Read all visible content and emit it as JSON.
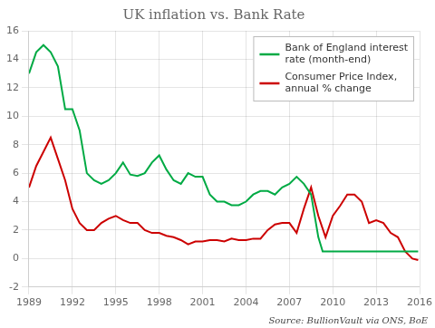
{
  "chart_data": {
    "type": "line",
    "title": "UK inflation vs. Bank Rate",
    "annotations": [
      "Source: BullionVault via ONS, BoE"
    ],
    "xlim": [
      1989,
      2016
    ],
    "xticks": [
      1989,
      1992,
      1995,
      1998,
      2001,
      2004,
      2007,
      2010,
      2013,
      2016
    ],
    "ylim": [
      -2,
      16
    ],
    "yticks": [
      -2,
      0,
      2,
      4,
      6,
      8,
      10,
      12,
      14,
      16
    ],
    "grid": true,
    "legend": "upper right",
    "series": [
      {
        "name": "Bank of England interest\nrate (month-end)",
        "color": "#00AA44",
        "x": [
          1989.0,
          1989.5,
          1990.0,
          1990.5,
          1991.0,
          1991.5,
          1992.0,
          1992.5,
          1993.0,
          1993.5,
          1994.0,
          1994.5,
          1995.0,
          1995.5,
          1996.0,
          1996.5,
          1997.0,
          1997.5,
          1998.0,
          1998.5,
          1999.0,
          1999.5,
          2000.0,
          2000.5,
          2001.0,
          2001.5,
          2002.0,
          2002.5,
          2003.0,
          2003.5,
          2004.0,
          2004.5,
          2005.0,
          2005.5,
          2006.0,
          2006.5,
          2007.0,
          2007.5,
          2008.0,
          2008.5,
          2009.0,
          2009.3,
          2009.5,
          2010.0,
          2010.5,
          2011.0,
          2011.5,
          2012.0,
          2012.5,
          2013.0,
          2013.5,
          2014.0,
          2014.5,
          2015.0,
          2015.5,
          2015.9
        ],
        "values": [
          13.0,
          14.5,
          15.0,
          14.5,
          13.5,
          10.5,
          10.5,
          9.0,
          6.0,
          5.5,
          5.25,
          5.5,
          6.0,
          6.75,
          5.9,
          5.8,
          6.0,
          6.75,
          7.25,
          6.25,
          5.5,
          5.25,
          6.0,
          5.75,
          5.75,
          4.5,
          4.0,
          4.0,
          3.75,
          3.75,
          4.0,
          4.5,
          4.75,
          4.75,
          4.5,
          5.0,
          5.25,
          5.75,
          5.25,
          4.5,
          1.5,
          0.5,
          0.5,
          0.5,
          0.5,
          0.5,
          0.5,
          0.5,
          0.5,
          0.5,
          0.5,
          0.5,
          0.5,
          0.5,
          0.5,
          0.5
        ]
      },
      {
        "name": "Consumer Price Index,\nannual % change",
        "color": "#CC0000",
        "x": [
          1989.0,
          1989.5,
          1990.0,
          1990.5,
          1991.0,
          1991.5,
          1992.0,
          1992.5,
          1993.0,
          1993.5,
          1994.0,
          1994.5,
          1995.0,
          1995.5,
          1996.0,
          1996.5,
          1997.0,
          1997.5,
          1998.0,
          1998.5,
          1999.0,
          1999.5,
          2000.0,
          2000.5,
          2001.0,
          2001.5,
          2002.0,
          2002.5,
          2003.0,
          2003.5,
          2004.0,
          2004.5,
          2005.0,
          2005.5,
          2006.0,
          2006.5,
          2007.0,
          2007.5,
          2008.0,
          2008.5,
          2009.0,
          2009.5,
          2010.0,
          2010.5,
          2011.0,
          2011.5,
          2012.0,
          2012.5,
          2013.0,
          2013.5,
          2014.0,
          2014.5,
          2015.0,
          2015.5,
          2015.9
        ],
        "values": [
          5.0,
          6.5,
          7.5,
          8.5,
          7.0,
          5.5,
          3.5,
          2.5,
          2.0,
          2.0,
          2.5,
          2.8,
          3.0,
          2.7,
          2.5,
          2.5,
          2.0,
          1.8,
          1.8,
          1.6,
          1.5,
          1.3,
          1.0,
          1.2,
          1.2,
          1.3,
          1.3,
          1.2,
          1.4,
          1.3,
          1.3,
          1.4,
          1.4,
          2.0,
          2.4,
          2.5,
          2.5,
          1.8,
          3.5,
          5.0,
          3.0,
          1.5,
          3.0,
          3.7,
          4.5,
          4.5,
          4.0,
          2.5,
          2.7,
          2.5,
          1.8,
          1.5,
          0.5,
          0.0,
          -0.1
        ]
      }
    ]
  }
}
